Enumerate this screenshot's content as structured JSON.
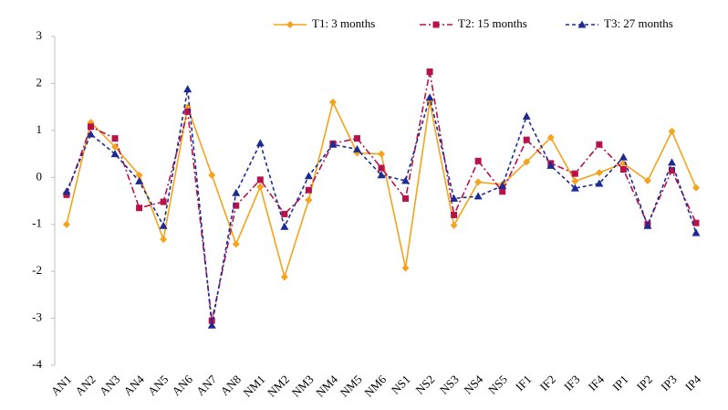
{
  "chart_data": {
    "type": "line",
    "categories": [
      "AN1",
      "AN2",
      "AN3",
      "AN4",
      "AN5",
      "AN6",
      "AN7",
      "AN8",
      "NM1",
      "NM2",
      "NM3",
      "NM4",
      "NM5",
      "NM6",
      "NS1",
      "NS2",
      "NS3",
      "NS4",
      "NS5",
      "IF1",
      "IF2",
      "IF3",
      "IF4",
      "IP1",
      "IP2",
      "IP3",
      "IP4"
    ],
    "series": [
      {
        "name": "T1: 3 months",
        "color": "#f5a31a",
        "marker": "diamond",
        "dash": "solid",
        "values": [
          -1.0,
          1.17,
          0.65,
          0.05,
          -1.32,
          1.5,
          0.05,
          -1.42,
          -0.2,
          -2.12,
          -0.48,
          1.6,
          0.52,
          0.5,
          -1.93,
          1.6,
          -1.02,
          -0.1,
          -0.15,
          0.33,
          0.85,
          -0.08,
          0.1,
          0.3,
          -0.07,
          0.98,
          -0.22
        ]
      },
      {
        "name": "T2: 15 months",
        "color": "#b8124a",
        "marker": "square",
        "dash": "dashdot",
        "values": [
          -0.37,
          1.08,
          0.83,
          -0.65,
          -0.52,
          1.4,
          -3.05,
          -0.6,
          -0.05,
          -0.78,
          -0.27,
          0.72,
          0.83,
          0.2,
          -0.45,
          2.25,
          -0.8,
          0.35,
          -0.3,
          0.8,
          0.3,
          0.08,
          0.7,
          0.17,
          -1.0,
          0.15,
          -0.97
        ]
      },
      {
        "name": "T3: 27 months",
        "color": "#1c2a94",
        "marker": "triangle",
        "dash": "dash",
        "values": [
          -0.3,
          0.92,
          0.5,
          -0.08,
          -1.03,
          1.88,
          -3.15,
          -0.33,
          0.73,
          -1.05,
          0.03,
          0.7,
          0.6,
          0.05,
          -0.07,
          1.7,
          -0.45,
          -0.4,
          -0.18,
          1.3,
          0.25,
          -0.23,
          -0.13,
          0.43,
          -1.03,
          0.32,
          -1.18
        ]
      }
    ],
    "ylim": [
      -4,
      3
    ],
    "yticks": [
      -4,
      -3,
      -2,
      -1,
      0,
      1,
      2,
      3
    ],
    "legend": "top-right"
  }
}
